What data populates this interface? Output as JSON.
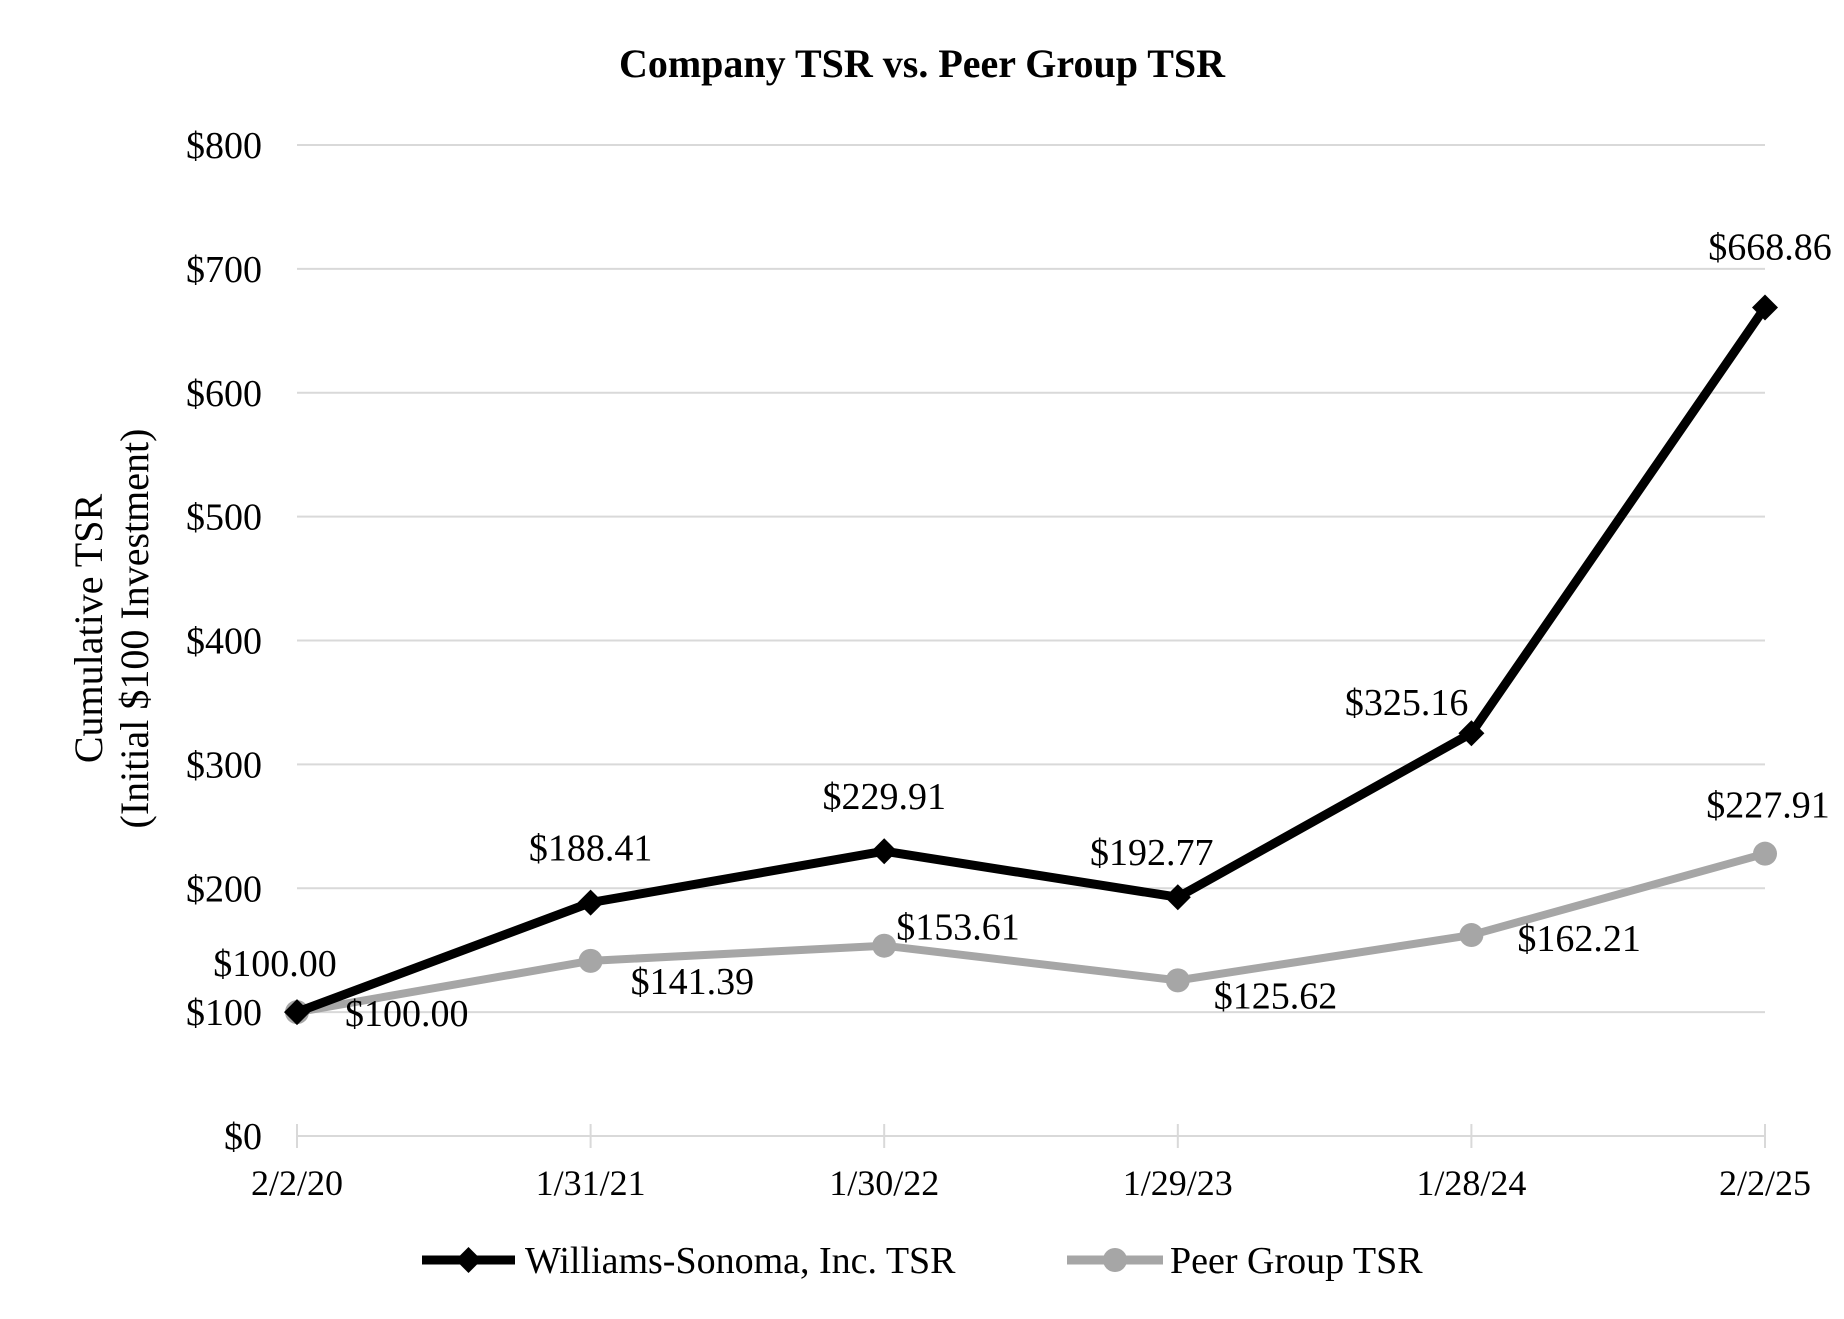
{
  "chart_data": {
    "type": "line",
    "title": "Company TSR vs. Peer Group TSR",
    "ylabel_line1": "Cumulative TSR",
    "ylabel_line2": "(Initial $100 Investment)",
    "xlabel": "",
    "categories": [
      "2/2/20",
      "1/31/21",
      "1/30/22",
      "1/29/23",
      "1/28/24",
      "2/2/25"
    ],
    "ylim": [
      0,
      800
    ],
    "yticks": [
      0,
      100,
      200,
      300,
      400,
      500,
      600,
      700,
      800
    ],
    "ytick_labels": [
      "$0",
      "$100",
      "$200",
      "$300",
      "$400",
      "$500",
      "$600",
      "$700",
      "$800"
    ],
    "grid": true,
    "legend_position": "bottom",
    "series": [
      {
        "name": "Williams-Sonoma, Inc. TSR",
        "values": [
          100.0,
          188.41,
          229.91,
          192.77,
          325.16,
          668.86
        ],
        "labels": [
          "$100.00",
          "$188.41",
          "$229.91",
          "$192.77",
          "$325.16",
          "$668.86"
        ],
        "color": "#000000",
        "marker": "diamond"
      },
      {
        "name": "Peer Group TSR",
        "values": [
          100.0,
          141.39,
          153.61,
          125.62,
          162.21,
          227.91
        ],
        "labels": [
          "$100.00",
          "$141.39",
          "$153.61",
          "$125.62",
          "$162.21",
          "$227.91"
        ],
        "color": "#a6a6a6",
        "marker": "circle"
      }
    ]
  }
}
